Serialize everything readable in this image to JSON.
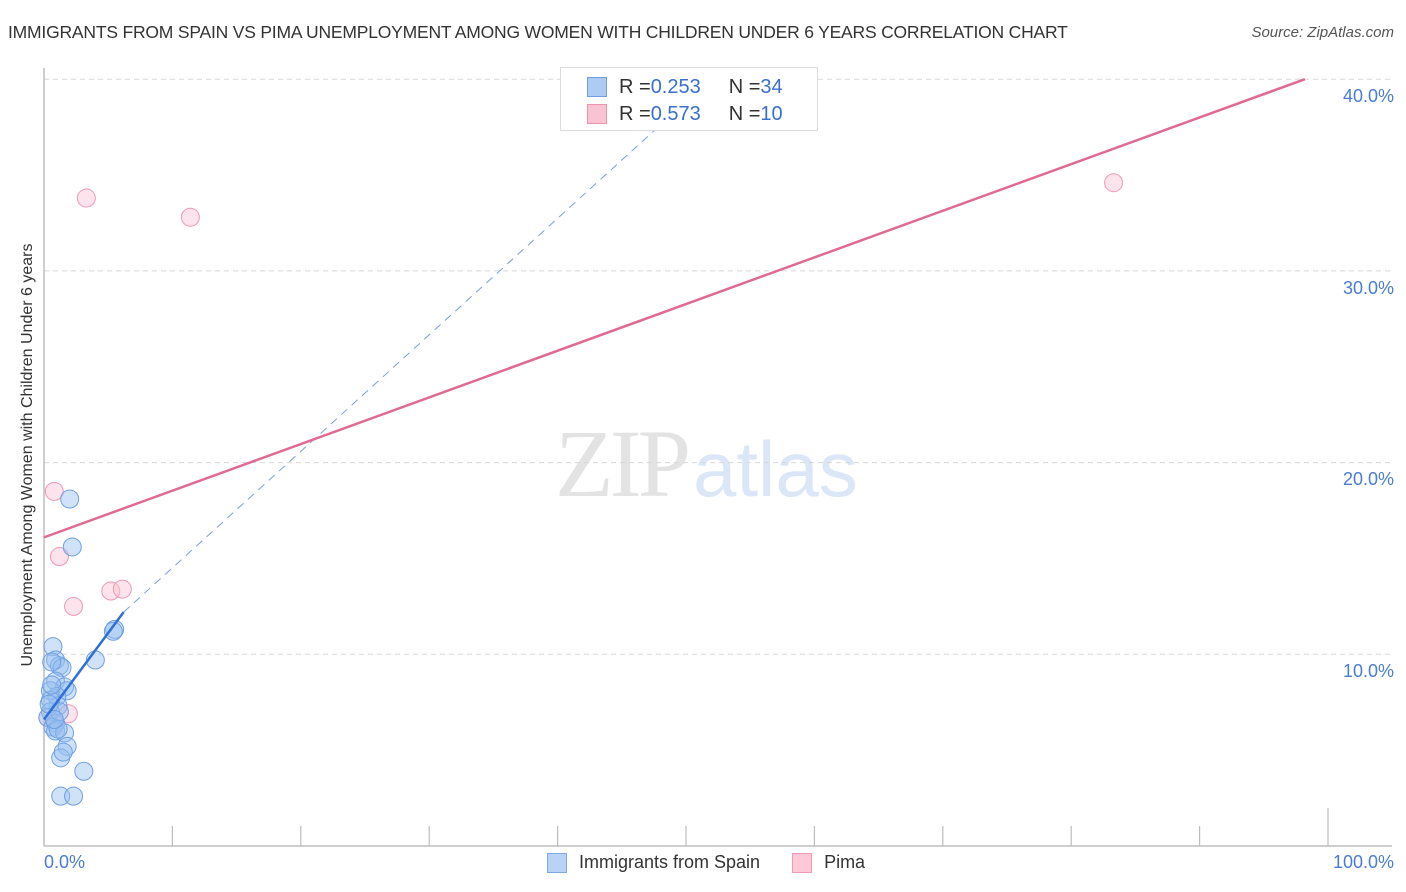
{
  "header": {
    "title": "IMMIGRANTS FROM SPAIN VS PIMA UNEMPLOYMENT AMONG WOMEN WITH CHILDREN UNDER 6 YEARS CORRELATION CHART",
    "source": "Source: ZipAtlas.com"
  },
  "watermark": {
    "zip": "ZIP",
    "atlas": "atlas"
  },
  "axes": {
    "y_label": "Unemployment Among Women with Children Under 6 years",
    "y_ticks": [
      "40.0%",
      "30.0%",
      "20.0%",
      "10.0%"
    ],
    "x_ticks": [
      "0.0%",
      "100.0%"
    ]
  },
  "legend": {
    "rows": [
      {
        "r_label": "R = ",
        "r_value": "0.253",
        "n_label": "N = ",
        "n_value": "34",
        "color": "#aecbf2",
        "border": "#6f9fe0"
      },
      {
        "r_label": "R = ",
        "r_value": "0.573",
        "n_label": "N = ",
        "n_value": "10",
        "color": "#f9c3d3",
        "border": "#ef93ae"
      }
    ]
  },
  "bottom_legend": {
    "items": [
      {
        "label": "Immigrants from Spain",
        "color": "#b8d3f5",
        "border": "#7ea9e4"
      },
      {
        "label": "Pima",
        "color": "#fbc9d8",
        "border": "#f09ab4"
      }
    ]
  },
  "colors": {
    "spain_fill": "rgba(150,190,240,0.45)",
    "spain_stroke": "#6f9fe0",
    "spain_line": "#2f6fd6",
    "pima_fill": "rgba(250,195,212,0.45)",
    "pima_stroke": "#ee9ab3",
    "pima_line": "#e06a93",
    "grid": "#d8d8d8",
    "axis": "#bdbdbd"
  },
  "chart_data": {
    "type": "scatter",
    "title": "IMMIGRANTS FROM SPAIN VS PIMA UNEMPLOYMENT AMONG WOMEN WITH CHILDREN UNDER 6 YEARS CORRELATION CHART",
    "xlabel": "",
    "ylabel": "Unemployment Among Women with Children Under 6 years",
    "xlim": [
      0,
      100
    ],
    "ylim": [
      0,
      42
    ],
    "x_ticks": [
      "0.0%",
      "100.0%"
    ],
    "y_ticks": [
      10,
      20,
      30,
      40
    ],
    "grid": true,
    "legend_position": "top-center",
    "series": [
      {
        "name": "Immigrants from Spain",
        "R": 0.253,
        "N": 34,
        "points": [
          [
            2.0,
            18.1
          ],
          [
            2.2,
            15.6
          ],
          [
            5.5,
            11.3
          ],
          [
            5.4,
            11.2
          ],
          [
            4.0,
            9.7
          ],
          [
            0.7,
            10.4
          ],
          [
            0.9,
            9.7
          ],
          [
            1.2,
            9.4
          ],
          [
            1.4,
            9.3
          ],
          [
            0.9,
            8.6
          ],
          [
            1.6,
            8.3
          ],
          [
            1.8,
            8.1
          ],
          [
            0.5,
            8.1
          ],
          [
            1.0,
            7.8
          ],
          [
            1.1,
            7.3
          ],
          [
            0.5,
            7.6
          ],
          [
            0.5,
            7.0
          ],
          [
            0.3,
            6.7
          ],
          [
            0.9,
            6.4
          ],
          [
            0.7,
            6.2
          ],
          [
            0.9,
            6.0
          ],
          [
            1.6,
            5.9
          ],
          [
            1.1,
            6.1
          ],
          [
            1.8,
            5.2
          ],
          [
            1.3,
            4.6
          ],
          [
            1.5,
            4.9
          ],
          [
            3.1,
            3.9
          ],
          [
            1.3,
            2.6
          ],
          [
            2.3,
            2.6
          ],
          [
            0.4,
            7.4
          ],
          [
            0.6,
            8.4
          ],
          [
            1.2,
            7.0
          ],
          [
            0.8,
            6.6
          ],
          [
            0.6,
            9.6
          ]
        ],
        "trend": {
          "x0": 0,
          "y0": 6.6,
          "x1": 6.2,
          "y1": 12.2,
          "dashed_extension_to": [
            52.6,
            40.4
          ]
        }
      },
      {
        "name": "Pima",
        "R": 0.573,
        "N": 10,
        "points": [
          [
            3.3,
            33.8
          ],
          [
            11.4,
            32.8
          ],
          [
            83.3,
            34.6
          ],
          [
            0.8,
            18.5
          ],
          [
            1.2,
            15.1
          ],
          [
            2.3,
            12.5
          ],
          [
            5.2,
            13.3
          ],
          [
            6.1,
            13.4
          ],
          [
            1.9,
            6.9
          ],
          [
            0.3,
            6.7
          ]
        ],
        "trend": {
          "x0": 0,
          "y0": 16.1,
          "x1": 98.2,
          "y1": 40.0
        }
      }
    ]
  }
}
